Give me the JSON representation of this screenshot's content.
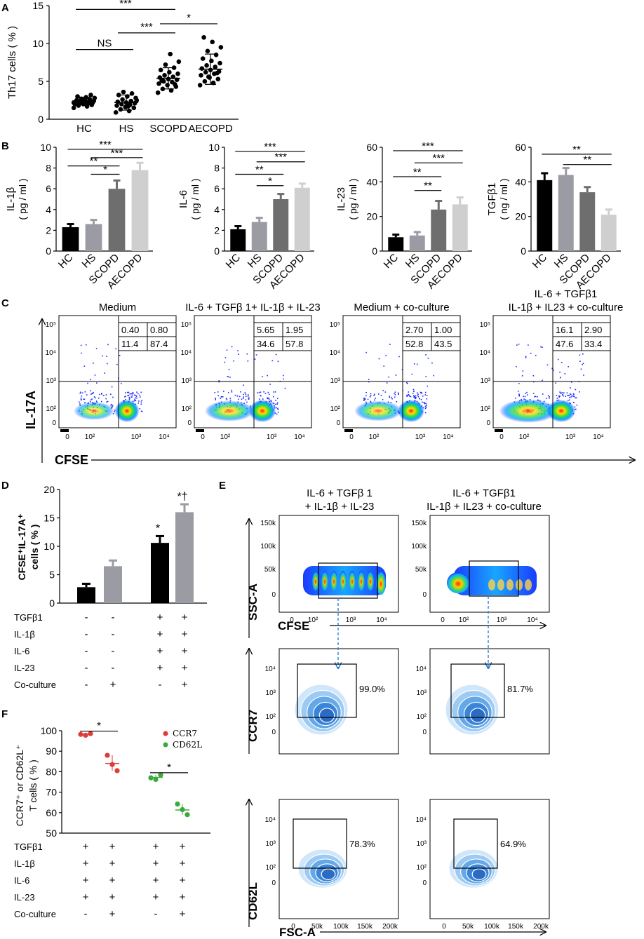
{
  "figure": {
    "panel_labels": [
      "A",
      "B",
      "C",
      "D",
      "E",
      "F"
    ]
  },
  "chart_data": [
    {
      "id": "A",
      "type": "scatter",
      "ylabel": "Th17 cells ( % )",
      "ylim": [
        0,
        15
      ],
      "yticks": [
        "0",
        "5",
        "10",
        "15"
      ],
      "categories": [
        "HC",
        "HS",
        "SCOPD",
        "AECOPD"
      ],
      "means": [
        2.4,
        2.2,
        5.4,
        6.6
      ],
      "sds": [
        0.5,
        1.0,
        1.4,
        2.0
      ],
      "points": [
        [
          1.5,
          1.7,
          1.8,
          1.9,
          2.0,
          2.0,
          2.1,
          2.1,
          2.2,
          2.2,
          2.3,
          2.3,
          2.4,
          2.4,
          2.5,
          2.5,
          2.6,
          2.7,
          2.8,
          2.9,
          3.0,
          3.2,
          2.6,
          2.2
        ],
        [
          0.9,
          1.1,
          1.3,
          1.5,
          1.6,
          1.8,
          1.9,
          2.0,
          2.1,
          2.2,
          2.3,
          2.4,
          2.6,
          2.8,
          3.0,
          3.2,
          3.4,
          3.6,
          2.5,
          1.7
        ],
        [
          3.5,
          3.8,
          4.0,
          4.3,
          4.5,
          4.7,
          4.9,
          5.0,
          5.2,
          5.3,
          5.5,
          5.6,
          5.8,
          6.0,
          6.2,
          6.5,
          6.8,
          7.2,
          7.6,
          8.6,
          5.1,
          4.6
        ],
        [
          4.5,
          4.8,
          5.0,
          5.3,
          5.5,
          5.8,
          6.0,
          6.2,
          6.3,
          6.5,
          6.7,
          6.9,
          7.1,
          7.4,
          7.7,
          8.0,
          8.5,
          9.0,
          9.5,
          10.2,
          10.8,
          6.1,
          5.6
        ]
      ],
      "significance": [
        {
          "from": 0,
          "to": 1,
          "label": "NS",
          "y": 9.2
        },
        {
          "from": 0,
          "to": 2,
          "label": "***",
          "y": 14.5
        },
        {
          "from": 1,
          "to": 2,
          "label": "***",
          "y": 11.4
        },
        {
          "from": 2,
          "to": 3,
          "label": "*",
          "y": 12.6
        }
      ]
    },
    {
      "id": "B1",
      "type": "bar",
      "ylabel": "IL-1β",
      "ylabel2": "( pg / ml )",
      "ylim": [
        0,
        10
      ],
      "yticks": [
        "0",
        "2",
        "4",
        "6",
        "8",
        "10"
      ],
      "categories": [
        "HC",
        "HS",
        "SCOPD",
        "AECOPD"
      ],
      "values": [
        2.3,
        2.6,
        6.0,
        7.8
      ],
      "errors": [
        0.3,
        0.4,
        0.8,
        0.7
      ],
      "colors": [
        "#000000",
        "#9b9ba4",
        "#6e6e6e",
        "#cfcfcf"
      ],
      "significance": [
        {
          "from": 0,
          "to": 3,
          "label": "***",
          "y": 9.8
        },
        {
          "from": 1,
          "to": 3,
          "label": "***",
          "y": 9.0
        },
        {
          "from": 0,
          "to": 2,
          "label": "**",
          "y": 8.2
        },
        {
          "from": 1,
          "to": 2,
          "label": "*",
          "y": 7.4
        }
      ]
    },
    {
      "id": "B2",
      "type": "bar",
      "ylabel": "IL-6",
      "ylabel2": "( pg / ml )",
      "ylim": [
        0,
        10
      ],
      "yticks": [
        "0",
        "2",
        "4",
        "6",
        "8",
        "10"
      ],
      "categories": [
        "HC",
        "HS",
        "SCOPD",
        "AECOPD"
      ],
      "values": [
        2.1,
        2.8,
        5.0,
        6.1
      ],
      "errors": [
        0.3,
        0.4,
        0.5,
        0.4
      ],
      "colors": [
        "#000000",
        "#9b9ba4",
        "#6e6e6e",
        "#cfcfcf"
      ],
      "significance": [
        {
          "from": 0,
          "to": 3,
          "label": "***",
          "y": 9.6
        },
        {
          "from": 1,
          "to": 3,
          "label": "***",
          "y": 8.6
        },
        {
          "from": 0,
          "to": 2,
          "label": "**",
          "y": 7.4
        },
        {
          "from": 1,
          "to": 2,
          "label": "*",
          "y": 6.3
        }
      ]
    },
    {
      "id": "B3",
      "type": "bar",
      "ylabel": "IL-23",
      "ylabel2": "( pg / ml )",
      "ylim": [
        0,
        60
      ],
      "yticks": [
        "0",
        "20",
        "40",
        "60"
      ],
      "categories": [
        "HC",
        "HS",
        "SCOPD",
        "AECOPD"
      ],
      "values": [
        8,
        9,
        24,
        27
      ],
      "errors": [
        1.5,
        2,
        5,
        4
      ],
      "colors": [
        "#000000",
        "#9b9ba4",
        "#6e6e6e",
        "#cfcfcf"
      ],
      "significance": [
        {
          "from": 0,
          "to": 3,
          "label": "***",
          "y": 58
        },
        {
          "from": 1,
          "to": 3,
          "label": "***",
          "y": 51
        },
        {
          "from": 0,
          "to": 2,
          "label": "**",
          "y": 43
        },
        {
          "from": 1,
          "to": 2,
          "label": "**",
          "y": 35
        }
      ]
    },
    {
      "id": "B4",
      "type": "bar",
      "ylabel": "TGFβ1",
      "ylabel2": "( ng / ml )",
      "ylim": [
        0,
        60
      ],
      "yticks": [
        "0",
        "20",
        "40",
        "60"
      ],
      "categories": [
        "HC",
        "HS",
        "SCOPD",
        "AECOPD"
      ],
      "values": [
        41,
        44,
        34,
        21
      ],
      "errors": [
        4,
        4,
        3,
        3
      ],
      "colors": [
        "#000000",
        "#9b9ba4",
        "#6e6e6e",
        "#cfcfcf"
      ],
      "significance": [
        {
          "from": 0,
          "to": 3,
          "label": "**",
          "y": 56
        },
        {
          "from": 1,
          "to": 3,
          "label": "**",
          "y": 50
        }
      ]
    },
    {
      "id": "D",
      "type": "bar",
      "ylabel": "CFSE⁺IL-17A⁺",
      "ylabel2": "cells ( % )",
      "ylim": [
        0,
        20
      ],
      "yticks": [
        "0",
        "5",
        "10",
        "15",
        "20"
      ],
      "values": [
        2.8,
        6.5,
        10.6,
        16.0
      ],
      "errors": [
        0.6,
        1.0,
        1.2,
        1.4
      ],
      "colors": [
        "#000000",
        "#9b9ba4",
        "#000000",
        "#9b9ba4"
      ],
      "bar_labels": [
        "",
        "",
        "*",
        "*†"
      ],
      "conditions": [
        {
          "name": "TGFβ1",
          "signs": [
            "-",
            "-",
            "+",
            "+"
          ]
        },
        {
          "name": "IL-1β",
          "signs": [
            "-",
            "-",
            "+",
            "+"
          ]
        },
        {
          "name": "IL-6",
          "signs": [
            "-",
            "-",
            "+",
            "+"
          ]
        },
        {
          "name": "IL-23",
          "signs": [
            "-",
            "-",
            "+",
            "+"
          ]
        },
        {
          "name": "Co-culture",
          "signs": [
            "-",
            "+",
            "-",
            "+"
          ]
        }
      ]
    },
    {
      "id": "F",
      "type": "scatter",
      "ylabel": "CCR7⁺ or CD62L⁺",
      "ylabel2": "T cells ( % )",
      "ylim": [
        50,
        100
      ],
      "yticks": [
        "50",
        "60",
        "70",
        "80",
        "90",
        "100"
      ],
      "legend": [
        {
          "name": "CCR7",
          "color": "#e03a3a"
        },
        {
          "name": "CD62L",
          "color": "#3aaa3a"
        }
      ],
      "groups": [
        {
          "series": "CCR7",
          "color": "#e03a3a",
          "values": [
            98.2,
            97.8,
            98.6
          ],
          "mean": 98.2
        },
        {
          "series": "CCR7",
          "color": "#e03a3a",
          "values": [
            88.0,
            83.5,
            80.5
          ],
          "mean": 84.0
        },
        {
          "series": "CD62L",
          "color": "#3aaa3a",
          "values": [
            77.0,
            76.2,
            78.4
          ],
          "mean": 77.2
        },
        {
          "series": "CD62L",
          "color": "#3aaa3a",
          "values": [
            64.2,
            61.5,
            59.0
          ],
          "mean": 61.3
        }
      ],
      "significance": [
        {
          "from": 0,
          "to": 1,
          "label": "*",
          "y": 99.8
        },
        {
          "from": 2,
          "to": 3,
          "label": "*",
          "y": 79.5
        }
      ],
      "conditions": [
        {
          "name": "TGFβ1",
          "signs": [
            "+",
            "+",
            "+",
            "+"
          ]
        },
        {
          "name": "IL-1β",
          "signs": [
            "+",
            "+",
            "+",
            "+"
          ]
        },
        {
          "name": "IL-6",
          "signs": [
            "+",
            "+",
            "+",
            "+"
          ]
        },
        {
          "name": "IL-23",
          "signs": [
            "+",
            "+",
            "+",
            "+"
          ]
        },
        {
          "name": "Co-culture",
          "signs": [
            "-",
            "+",
            "-",
            "+"
          ]
        }
      ]
    }
  ],
  "panel_c": {
    "y_axis_label": "IL-17A",
    "x_axis_label": "CFSE",
    "y_ticks": [
      "10⁵",
      "10⁴",
      "10³",
      "10²",
      "0"
    ],
    "x_ticks": [
      "0",
      "10²",
      "10³",
      "10⁴"
    ],
    "plots": [
      {
        "title1": "",
        "title2": "Medium",
        "q": [
          "0.40",
          "0.80",
          "11.4",
          "87.4"
        ],
        "density": [
          0.35,
          0.25
        ]
      },
      {
        "title1": "",
        "title2": "IL-6 + TGFβ 1+ IL-1β + IL-23",
        "q": [
          "5.65",
          "1.95",
          "34.6",
          "57.8"
        ],
        "density": [
          0.6,
          0.55
        ]
      },
      {
        "title1": "",
        "title2": "Medium + co-culture",
        "q": [
          "2.70",
          "1.00",
          "52.8",
          "43.5"
        ],
        "density": [
          0.55,
          0.5
        ]
      },
      {
        "title1": "IL-6 + TGFβ1",
        "title2": "IL-1β + IL23 + co-culture",
        "q": [
          "16.1",
          "2.90",
          "47.6",
          "33.4"
        ],
        "density": [
          0.85,
          0.7
        ]
      }
    ]
  },
  "panel_e": {
    "col_titles": [
      {
        "l1": "IL-6 + TGFβ 1",
        "l2": "+ IL-1β + IL-23"
      },
      {
        "l1": "IL-6 + TGFβ1",
        "l2": "IL-1β + IL23 + co-culture"
      }
    ],
    "ssc_label": "SSC-A",
    "cfse_label": "CFSE",
    "ccr7_label": "CCR7",
    "cd62l_label": "CD62L",
    "fsc_label": "FSC-A",
    "ssc_ticks": [
      "150k",
      "100k",
      "50k",
      "0"
    ],
    "cfse_ticks": [
      "0",
      "10²",
      "10³",
      "10⁴"
    ],
    "log_ticks": [
      "10⁴",
      "10³",
      "10²",
      "0"
    ],
    "fsc_ticks": [
      "0",
      "50k",
      "100k",
      "150k",
      "200k"
    ],
    "ccr7_pct": [
      "99.0%",
      "81.7%"
    ],
    "cd62l_pct": [
      "78.3%",
      "64.9%"
    ]
  }
}
